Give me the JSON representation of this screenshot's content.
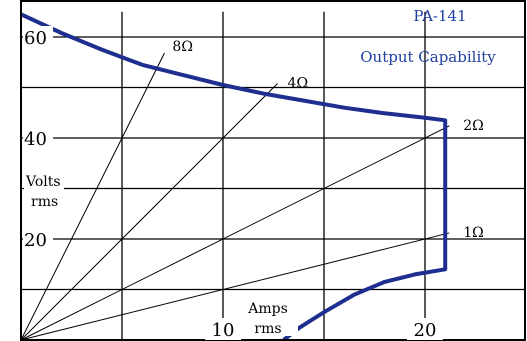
{
  "chart_data": {
    "type": "line",
    "title": "PA-141",
    "subtitle": "Output Capability",
    "xlabel": [
      "Amps",
      "rms"
    ],
    "ylabel": [
      "Volts",
      "rms"
    ],
    "xlim": [
      0,
      25
    ],
    "ylim": [
      0,
      65
    ],
    "x_ticks": [
      10,
      20
    ],
    "y_ticks": [
      20,
      40,
      60
    ],
    "grid": true,
    "series": [
      {
        "name": "",
        "color": "#1f2f8f",
        "points": [
          [
            0,
            64.5
          ],
          [
            2,
            60.8
          ],
          [
            4,
            57.5
          ],
          [
            6,
            54.5
          ],
          [
            8,
            52.5
          ],
          [
            10,
            50.5
          ],
          [
            12,
            48.8
          ],
          [
            14,
            47.4
          ],
          [
            16,
            46.0
          ],
          [
            18,
            44.9
          ],
          [
            20,
            44.0
          ],
          [
            21,
            43.5
          ],
          [
            21,
            14.0
          ],
          [
            19.5,
            13.0
          ],
          [
            18,
            11.5
          ],
          [
            16.5,
            9.0
          ],
          [
            15,
            5.5
          ],
          [
            13.8,
            2.5
          ],
          [
            13,
            0
          ]
        ]
      }
    ],
    "load_lines": [
      {
        "label": "8Ω",
        "ohms": 8
      },
      {
        "label": "4Ω",
        "ohms": 4
      },
      {
        "label": "2Ω",
        "ohms": 2
      },
      {
        "label": "1Ω",
        "ohms": 1
      }
    ]
  }
}
